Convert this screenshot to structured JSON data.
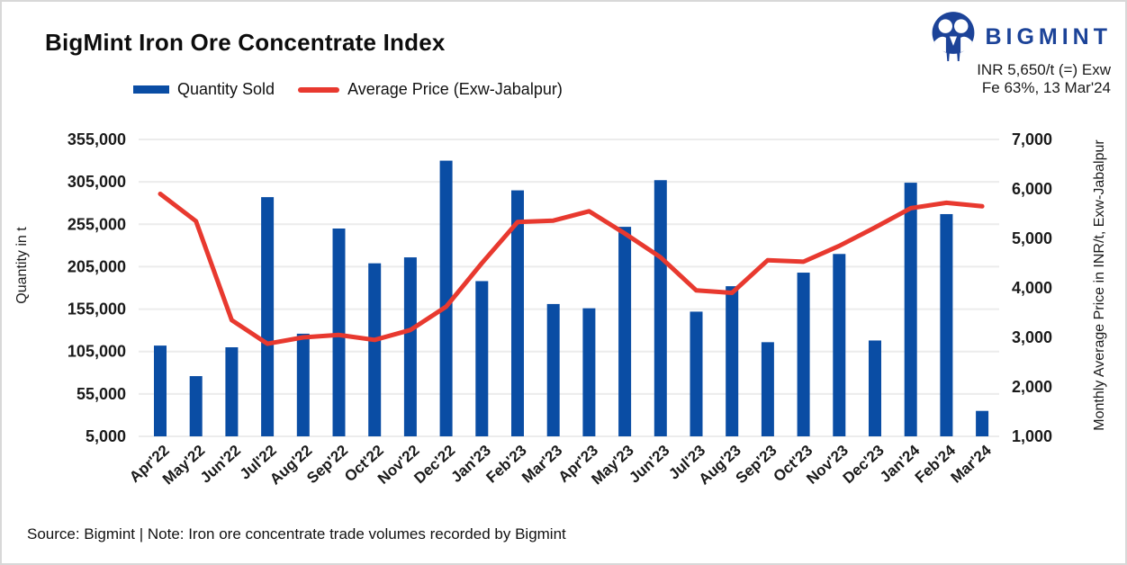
{
  "header": {
    "title": "BigMint Iron Ore Concentrate Index",
    "brand": "BIGMINT",
    "price_note_line1": "INR 5,650/t (=) Exw",
    "price_note_line2": "Fe 63%, 13 Mar'24"
  },
  "legend": {
    "quantity_label": "Quantity Sold",
    "price_label": "Average Price (Exw-Jabalpur)"
  },
  "footer": {
    "source_note": "Source: Bigmint | Note: Iron ore concentrate trade volumes recorded by Bigmint"
  },
  "colors": {
    "bar": "#0a4da4",
    "line": "#e8392f",
    "grid": "#ececec",
    "brand": "#1c4398"
  },
  "chart_data": {
    "type": "bar",
    "subtype": "bar+line dual axis",
    "grid": "horizontal",
    "legend_position": "top",
    "categories": [
      "Apr'22",
      "May'22",
      "Jun'22",
      "Jul'22",
      "Aug'22",
      "Sep'22",
      "Oct'22",
      "Nov'22",
      "Dec'22",
      "Jan'23",
      "Feb'23",
      "Mar'23",
      "Apr'23",
      "May'23",
      "Jun'23",
      "Jul'23",
      "Aug'23",
      "Sep'23",
      "Oct'23",
      "Nov'23",
      "Dec'23",
      "Jan'24",
      "Feb'24",
      "Mar'24"
    ],
    "series": [
      {
        "name": "Quantity Sold",
        "type": "bar",
        "axis": "left",
        "color": "#0a4da4",
        "values": [
          112000,
          76000,
          110000,
          287000,
          126000,
          250000,
          209000,
          216000,
          330000,
          188000,
          295000,
          161000,
          156000,
          252000,
          307000,
          152000,
          182000,
          116000,
          198000,
          220000,
          118000,
          304000,
          267000,
          35000
        ]
      },
      {
        "name": "Average Price (Exw-Jabalpur)",
        "type": "line",
        "axis": "right",
        "color": "#e8392f",
        "values": [
          5900,
          5350,
          3350,
          2870,
          3000,
          3050,
          2950,
          3150,
          3620,
          4500,
          5330,
          5360,
          5550,
          5100,
          4620,
          3950,
          3900,
          4560,
          4530,
          4850,
          5220,
          5610,
          5720,
          5650
        ]
      }
    ],
    "left_axis": {
      "label": "Quantity in t",
      "min": 5000,
      "max": 355000,
      "step": 50000,
      "tick_labels": [
        "355,000",
        "305,000",
        "255,000",
        "205,000",
        "155,000",
        "105,000",
        "55,000",
        "5,000"
      ]
    },
    "right_axis": {
      "label": "Monthly Average Price in INR/t, Exw-Jabalpur",
      "min": 1000,
      "max": 7000,
      "step": 1000,
      "tick_labels": [
        "7,000",
        "6,000",
        "5,000",
        "4,000",
        "3,000",
        "2,000",
        "1,000"
      ]
    }
  }
}
